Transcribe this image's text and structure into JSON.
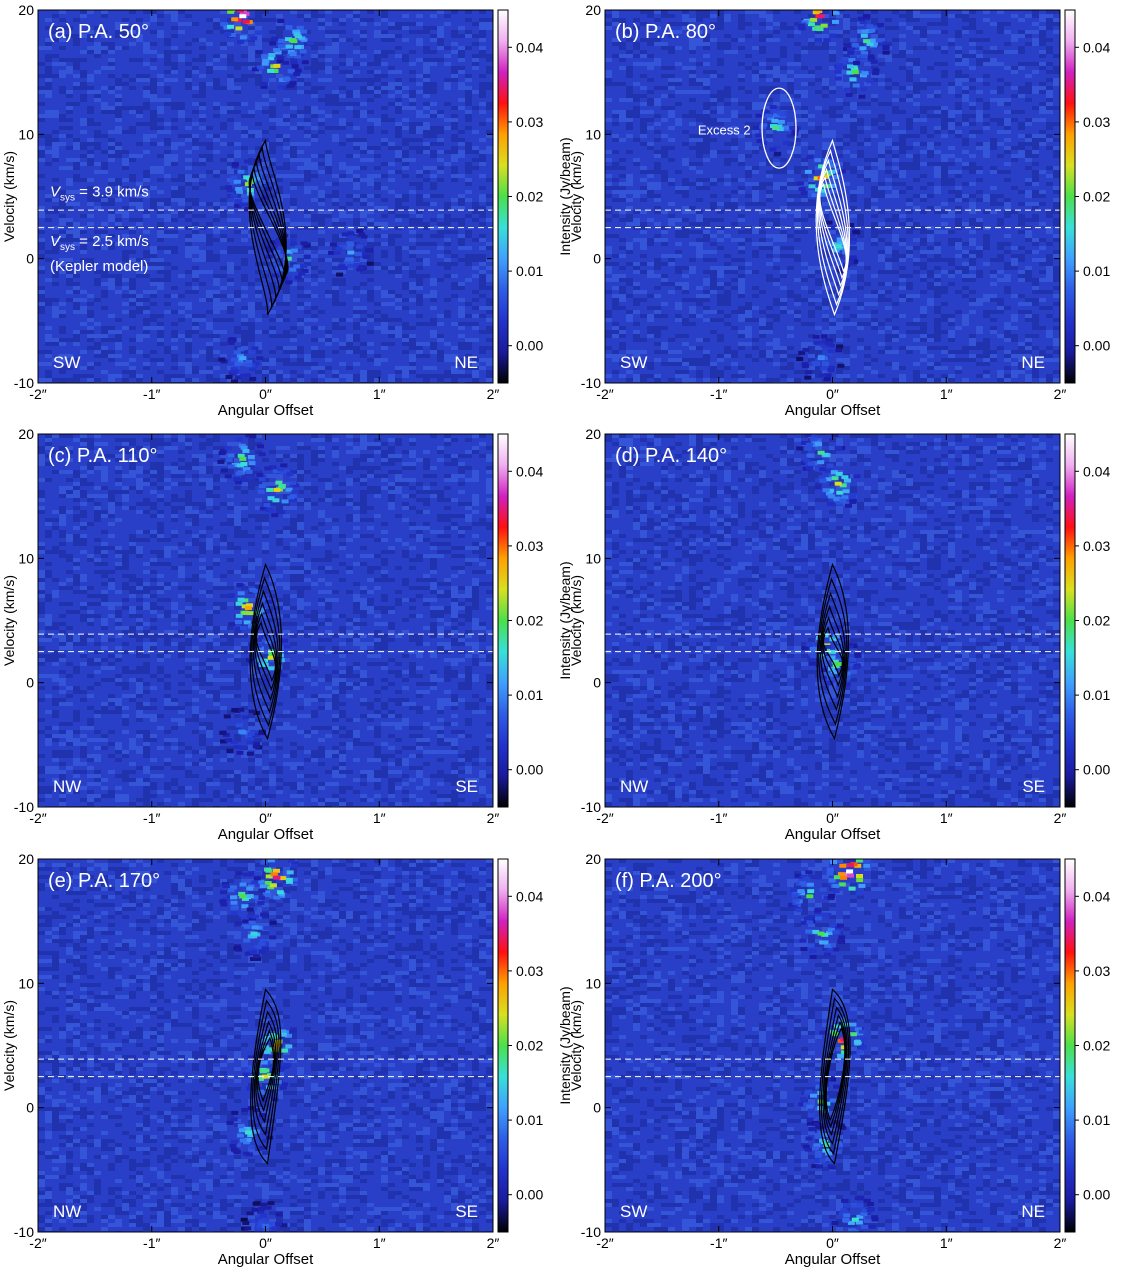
{
  "figure": {
    "x_axis_label": "Angular Offset",
    "y_axis_label": "Velocity (km/s)",
    "colorbar_label": "Intensity (Jy/beam)",
    "x_ticks": [
      "-2″",
      "-1″",
      "0″",
      "1″",
      "2″"
    ],
    "y_ticks": [
      "-10",
      "0",
      "10",
      "20"
    ],
    "colorbar_ticks": [
      "0.00",
      "0.01",
      "0.02",
      "0.03",
      "0.04"
    ],
    "colormap": [
      "#000000",
      "#1a1a9e",
      "#2233cc",
      "#2f5de6",
      "#3fa0ff",
      "#38e0d8",
      "#4be04b",
      "#d8e020",
      "#ffa000",
      "#ff1010",
      "#d020c0",
      "#f0b0f0",
      "#ffffff"
    ],
    "background_color": "#2a3fc8",
    "vsys_lines_kms": [
      3.9,
      2.5
    ]
  },
  "chart_data": [
    {
      "type": "heatmap",
      "panel": "a",
      "label": "(a) P.A. 50°",
      "left_dir": "SW",
      "right_dir": "NE",
      "xlim": [
        -2,
        2
      ],
      "ylim": [
        -10,
        20
      ],
      "clim": [
        -0.005,
        0.045
      ],
      "annotations": [
        {
          "text": "V_sys = 3.9 km/s",
          "base": "V",
          "sub": "sys",
          "rest": " = 3.9 km/s"
        },
        {
          "text": "V_sys = 2.5 km/s",
          "base": "V",
          "sub": "sys",
          "rest": " = 2.5 km/s"
        },
        {
          "text": "(Kepler model)"
        }
      ],
      "emission_blobs": [
        {
          "x": -0.2,
          "v": 19.5,
          "peak": 0.045
        },
        {
          "x": 0.1,
          "v": 15.5,
          "peak": 0.025
        },
        {
          "x": 0.25,
          "v": 17.5,
          "peak": 0.02
        },
        {
          "x": -0.15,
          "v": 6.0,
          "peak": 0.022
        },
        {
          "x": 0.2,
          "v": 0.0,
          "peak": 0.018
        },
        {
          "x": 0.75,
          "v": 0.5,
          "peak": 0.012
        },
        {
          "x": -0.2,
          "v": -8.0,
          "peak": 0.012
        }
      ],
      "contour_peaks": [
        {
          "x": -0.15,
          "v": 6.0
        },
        {
          "x": 0.2,
          "v": -0.5
        }
      ],
      "contour_color": "black"
    },
    {
      "type": "heatmap",
      "panel": "b",
      "label": "(b) P.A. 80°",
      "left_dir": "SW",
      "right_dir": "NE",
      "xlim": [
        -2,
        2
      ],
      "ylim": [
        -10,
        20
      ],
      "clim": [
        -0.005,
        0.045
      ],
      "annotations": [
        {
          "text": "Excess 2"
        }
      ],
      "emission_blobs": [
        {
          "x": -0.1,
          "v": 19.5,
          "peak": 0.035
        },
        {
          "x": 0.2,
          "v": 15.0,
          "peak": 0.02
        },
        {
          "x": 0.3,
          "v": 17.5,
          "peak": 0.018
        },
        {
          "x": -0.5,
          "v": 10.5,
          "peak": 0.018
        },
        {
          "x": -0.1,
          "v": 6.5,
          "peak": 0.03
        },
        {
          "x": 0.05,
          "v": 1.0,
          "peak": 0.016
        },
        {
          "x": -0.1,
          "v": -8.0,
          "peak": 0.01
        }
      ],
      "contour_peaks": [
        {
          "x": -0.1,
          "v": 5.0
        },
        {
          "x": 0.1,
          "v": 0.0
        }
      ],
      "contour_color": "white"
    },
    {
      "type": "heatmap",
      "panel": "c",
      "label": "(c) P.A. 110°",
      "left_dir": "NW",
      "right_dir": "SE",
      "xlim": [
        -2,
        2
      ],
      "ylim": [
        -10,
        20
      ],
      "clim": [
        -0.005,
        0.045
      ],
      "emission_blobs": [
        {
          "x": -0.2,
          "v": 18.0,
          "peak": 0.02
        },
        {
          "x": 0.1,
          "v": 15.5,
          "peak": 0.025
        },
        {
          "x": -0.15,
          "v": 6.0,
          "peak": 0.028
        },
        {
          "x": 0.05,
          "v": 2.0,
          "peak": 0.024
        },
        {
          "x": -0.2,
          "v": -4.0,
          "peak": 0.01
        }
      ],
      "contour_peaks": [
        {
          "x": -0.05,
          "v": 3.5
        },
        {
          "x": 0.05,
          "v": 1.5
        }
      ],
      "contour_color": "black"
    },
    {
      "type": "heatmap",
      "panel": "d",
      "label": "(d) P.A. 140°",
      "left_dir": "NW",
      "right_dir": "SE",
      "xlim": [
        -2,
        2
      ],
      "ylim": [
        -10,
        20
      ],
      "clim": [
        -0.005,
        0.045
      ],
      "emission_blobs": [
        {
          "x": -0.1,
          "v": 18.5,
          "peak": 0.018
        },
        {
          "x": 0.05,
          "v": 16.0,
          "peak": 0.024
        },
        {
          "x": -0.05,
          "v": 3.0,
          "peak": 0.024
        },
        {
          "x": 0.05,
          "v": 1.5,
          "peak": 0.02
        }
      ],
      "contour_peaks": [
        {
          "x": -0.05,
          "v": 3.0
        },
        {
          "x": 0.05,
          "v": 2.0
        }
      ],
      "contour_color": "black"
    },
    {
      "type": "heatmap",
      "panel": "e",
      "label": "(e) P.A. 170°",
      "left_dir": "NW",
      "right_dir": "SE",
      "xlim": [
        -2,
        2
      ],
      "ylim": [
        -10,
        20
      ],
      "clim": [
        -0.005,
        0.045
      ],
      "emission_blobs": [
        {
          "x": 0.1,
          "v": 18.5,
          "peak": 0.035
        },
        {
          "x": -0.2,
          "v": 17.0,
          "peak": 0.02
        },
        {
          "x": -0.1,
          "v": 14.0,
          "peak": 0.015
        },
        {
          "x": 0.1,
          "v": 5.0,
          "peak": 0.028
        },
        {
          "x": 0.0,
          "v": 2.5,
          "peak": 0.024
        },
        {
          "x": -0.15,
          "v": -2.0,
          "peak": 0.016
        },
        {
          "x": 0.0,
          "v": -9.5,
          "peak": 0.008
        }
      ],
      "contour_peaks": [
        {
          "x": 0.05,
          "v": 4.5
        },
        {
          "x": -0.05,
          "v": 2.0
        }
      ],
      "contour_color": "black"
    },
    {
      "type": "heatmap",
      "panel": "f",
      "label": "(f) P.A. 200°",
      "left_dir": "SW",
      "right_dir": "NE",
      "xlim": [
        -2,
        2
      ],
      "ylim": [
        -10,
        20
      ],
      "clim": [
        -0.005,
        0.045
      ],
      "emission_blobs": [
        {
          "x": 0.15,
          "v": 19.0,
          "peak": 0.045
        },
        {
          "x": -0.2,
          "v": 17.0,
          "peak": 0.02
        },
        {
          "x": -0.1,
          "v": 14.0,
          "peak": 0.02
        },
        {
          "x": 0.1,
          "v": 5.5,
          "peak": 0.035
        },
        {
          "x": -0.1,
          "v": 0.5,
          "peak": 0.02
        },
        {
          "x": -0.05,
          "v": -3.0,
          "peak": 0.018
        },
        {
          "x": 0.2,
          "v": -9.0,
          "peak": 0.016
        }
      ],
      "contour_peaks": [
        {
          "x": 0.1,
          "v": 5.5
        },
        {
          "x": -0.05,
          "v": 0.0
        }
      ],
      "contour_color": "black"
    }
  ]
}
